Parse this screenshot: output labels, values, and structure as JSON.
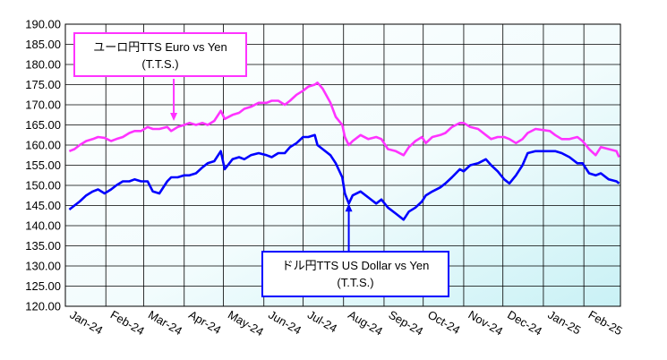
{
  "chart_data": {
    "type": "line",
    "x_ticks": [
      "Jan-24",
      "Feb-24",
      "Mar-24",
      "Apr-24",
      "May-24",
      "Jun-24",
      "Jul-24",
      "Aug-24",
      "Sep-24",
      "Oct-24",
      "Nov-24",
      "Dec-24",
      "Jan-25",
      "Feb-25"
    ],
    "ylim": [
      120,
      190
    ],
    "y_ticks": [
      "120.00",
      "125.00",
      "130.00",
      "135.00",
      "140.00",
      "145.00",
      "150.00",
      "155.00",
      "160.00",
      "165.00",
      "170.00",
      "175.00",
      "180.00",
      "185.00",
      "190.00"
    ],
    "grid": true,
    "series": [
      {
        "name": "ユーロ円TTS Euro vs Yen (T.T.S.)",
        "color": "#ff33ff",
        "points": [
          [
            "2024-01-04",
            158.5
          ],
          [
            "2024-01-08",
            159.0
          ],
          [
            "2024-01-12",
            160.0
          ],
          [
            "2024-01-17",
            161.0
          ],
          [
            "2024-01-22",
            161.5
          ],
          [
            "2024-01-26",
            162.0
          ],
          [
            "2024-01-31",
            161.8
          ],
          [
            "2024-02-05",
            161.0
          ],
          [
            "2024-02-09",
            161.5
          ],
          [
            "2024-02-14",
            162.0
          ],
          [
            "2024-02-19",
            163.0
          ],
          [
            "2024-02-23",
            163.5
          ],
          [
            "2024-02-28",
            163.5
          ],
          [
            "2024-03-04",
            164.5
          ],
          [
            "2024-03-08",
            164.0
          ],
          [
            "2024-03-13",
            164.0
          ],
          [
            "2024-03-19",
            164.5
          ],
          [
            "2024-03-22",
            163.5
          ],
          [
            "2024-03-27",
            164.5
          ],
          [
            "2024-04-01",
            165.0
          ],
          [
            "2024-04-05",
            165.5
          ],
          [
            "2024-04-10",
            165.0
          ],
          [
            "2024-04-15",
            165.5
          ],
          [
            "2024-04-19",
            165.0
          ],
          [
            "2024-04-24",
            166.0
          ],
          [
            "2024-04-29",
            168.5
          ],
          [
            "2024-05-02",
            166.5
          ],
          [
            "2024-05-08",
            167.5
          ],
          [
            "2024-05-13",
            168.0
          ],
          [
            "2024-05-17",
            169.0
          ],
          [
            "2024-05-22",
            169.5
          ],
          [
            "2024-05-28",
            170.5
          ],
          [
            "2024-06-03",
            170.5
          ],
          [
            "2024-06-07",
            171.0
          ],
          [
            "2024-06-12",
            171.0
          ],
          [
            "2024-06-17",
            170.0
          ],
          [
            "2024-06-21",
            171.0
          ],
          [
            "2024-06-26",
            172.5
          ],
          [
            "2024-07-01",
            173.5
          ],
          [
            "2024-07-05",
            174.5
          ],
          [
            "2024-07-10",
            175.0
          ],
          [
            "2024-07-12",
            175.5
          ],
          [
            "2024-07-16",
            174.0
          ],
          [
            "2024-07-22",
            170.5
          ],
          [
            "2024-07-26",
            167.0
          ],
          [
            "2024-07-31",
            165.0
          ],
          [
            "2024-08-02",
            162.0
          ],
          [
            "2024-08-05",
            160.0
          ],
          [
            "2024-08-08",
            161.0
          ],
          [
            "2024-08-14",
            162.5
          ],
          [
            "2024-08-20",
            161.5
          ],
          [
            "2024-08-26",
            162.0
          ],
          [
            "2024-08-30",
            161.5
          ],
          [
            "2024-09-04",
            159.0
          ],
          [
            "2024-09-10",
            158.5
          ],
          [
            "2024-09-16",
            157.5
          ],
          [
            "2024-09-20",
            159.5
          ],
          [
            "2024-09-25",
            161.0
          ],
          [
            "2024-09-30",
            162.0
          ],
          [
            "2024-10-03",
            160.5
          ],
          [
            "2024-10-08",
            162.0
          ],
          [
            "2024-10-14",
            162.5
          ],
          [
            "2024-10-18",
            163.0
          ],
          [
            "2024-10-23",
            164.5
          ],
          [
            "2024-10-29",
            165.5
          ],
          [
            "2024-11-01",
            165.5
          ],
          [
            "2024-11-06",
            164.5
          ],
          [
            "2024-11-12",
            164.0
          ],
          [
            "2024-11-18",
            162.5
          ],
          [
            "2024-11-22",
            161.5
          ],
          [
            "2024-11-27",
            162.0
          ],
          [
            "2024-12-02",
            162.0
          ],
          [
            "2024-12-06",
            161.5
          ],
          [
            "2024-12-11",
            160.5
          ],
          [
            "2024-12-16",
            161.5
          ],
          [
            "2024-12-20",
            163.0
          ],
          [
            "2024-12-26",
            164.0
          ],
          [
            "2025-01-06",
            163.5
          ],
          [
            "2025-01-10",
            162.5
          ],
          [
            "2025-01-15",
            161.5
          ],
          [
            "2025-01-21",
            161.5
          ],
          [
            "2025-01-27",
            162.0
          ],
          [
            "2025-01-31",
            161.0
          ],
          [
            "2025-02-05",
            159.0
          ],
          [
            "2025-02-10",
            157.5
          ],
          [
            "2025-02-14",
            159.5
          ],
          [
            "2025-02-20",
            159.0
          ],
          [
            "2025-02-26",
            158.5
          ],
          [
            "2025-02-28",
            157.0
          ]
        ]
      },
      {
        "name": "ドル円TTS US Dollar vs Yen (T.T.S.)",
        "color": "#0000ff",
        "points": [
          [
            "2024-01-04",
            144.0
          ],
          [
            "2024-01-08",
            145.0
          ],
          [
            "2024-01-12",
            146.0
          ],
          [
            "2024-01-17",
            147.5
          ],
          [
            "2024-01-22",
            148.5
          ],
          [
            "2024-01-26",
            149.0
          ],
          [
            "2024-01-31",
            148.0
          ],
          [
            "2024-02-05",
            149.0
          ],
          [
            "2024-02-09",
            150.0
          ],
          [
            "2024-02-14",
            151.0
          ],
          [
            "2024-02-19",
            151.0
          ],
          [
            "2024-02-23",
            151.5
          ],
          [
            "2024-02-28",
            151.0
          ],
          [
            "2024-03-04",
            151.0
          ],
          [
            "2024-03-08",
            148.5
          ],
          [
            "2024-03-13",
            148.0
          ],
          [
            "2024-03-19",
            151.0
          ],
          [
            "2024-03-22",
            152.0
          ],
          [
            "2024-03-27",
            152.0
          ],
          [
            "2024-04-01",
            152.5
          ],
          [
            "2024-04-05",
            152.5
          ],
          [
            "2024-04-10",
            153.0
          ],
          [
            "2024-04-15",
            154.5
          ],
          [
            "2024-04-19",
            155.5
          ],
          [
            "2024-04-24",
            156.0
          ],
          [
            "2024-04-29",
            158.5
          ],
          [
            "2024-05-02",
            154.0
          ],
          [
            "2024-05-08",
            156.5
          ],
          [
            "2024-05-13",
            157.0
          ],
          [
            "2024-05-17",
            156.5
          ],
          [
            "2024-05-22",
            157.5
          ],
          [
            "2024-05-28",
            158.0
          ],
          [
            "2024-06-03",
            157.5
          ],
          [
            "2024-06-07",
            157.0
          ],
          [
            "2024-06-12",
            158.0
          ],
          [
            "2024-06-17",
            158.0
          ],
          [
            "2024-06-21",
            159.5
          ],
          [
            "2024-06-26",
            160.5
          ],
          [
            "2024-07-01",
            162.0
          ],
          [
            "2024-07-05",
            162.0
          ],
          [
            "2024-07-10",
            162.5
          ],
          [
            "2024-07-12",
            160.0
          ],
          [
            "2024-07-16",
            159.0
          ],
          [
            "2024-07-22",
            157.5
          ],
          [
            "2024-07-26",
            155.5
          ],
          [
            "2024-07-31",
            152.0
          ],
          [
            "2024-08-02",
            148.0
          ],
          [
            "2024-08-05",
            145.5
          ],
          [
            "2024-08-08",
            147.5
          ],
          [
            "2024-08-14",
            148.5
          ],
          [
            "2024-08-20",
            147.0
          ],
          [
            "2024-08-26",
            145.5
          ],
          [
            "2024-08-30",
            146.5
          ],
          [
            "2024-09-04",
            144.5
          ],
          [
            "2024-09-10",
            143.0
          ],
          [
            "2024-09-16",
            141.5
          ],
          [
            "2024-09-20",
            143.5
          ],
          [
            "2024-09-25",
            144.5
          ],
          [
            "2024-09-30",
            146.0
          ],
          [
            "2024-10-03",
            147.5
          ],
          [
            "2024-10-08",
            148.5
          ],
          [
            "2024-10-14",
            149.5
          ],
          [
            "2024-10-18",
            150.5
          ],
          [
            "2024-10-23",
            152.0
          ],
          [
            "2024-10-29",
            154.0
          ],
          [
            "2024-11-01",
            153.5
          ],
          [
            "2024-11-06",
            155.0
          ],
          [
            "2024-11-12",
            155.5
          ],
          [
            "2024-11-18",
            156.5
          ],
          [
            "2024-11-22",
            155.0
          ],
          [
            "2024-11-27",
            153.5
          ],
          [
            "2024-12-02",
            151.5
          ],
          [
            "2024-12-06",
            150.5
          ],
          [
            "2024-12-11",
            152.5
          ],
          [
            "2024-12-16",
            155.0
          ],
          [
            "2024-12-20",
            158.0
          ],
          [
            "2024-12-26",
            158.5
          ],
          [
            "2025-01-06",
            158.5
          ],
          [
            "2025-01-10",
            158.5
          ],
          [
            "2025-01-15",
            158.0
          ],
          [
            "2025-01-21",
            157.0
          ],
          [
            "2025-01-27",
            155.5
          ],
          [
            "2025-01-31",
            155.5
          ],
          [
            "2025-02-05",
            153.0
          ],
          [
            "2025-02-10",
            152.5
          ],
          [
            "2025-02-14",
            153.0
          ],
          [
            "2025-02-20",
            151.5
          ],
          [
            "2025-02-26",
            151.0
          ],
          [
            "2025-02-28",
            150.5
          ]
        ]
      }
    ]
  },
  "callouts": {
    "euro": {
      "line1": "ユーロ円TTS  Euro vs Yen",
      "line2": "(T.T.S.)",
      "color": "#ff33ff",
      "target_date": "2024-03-24",
      "target_value": 166.0
    },
    "usd": {
      "line1": "ドル円TTS   US Dollar vs Yen",
      "line2": "(T.T.S.)",
      "color": "#0000ff",
      "target_date": "2024-08-05",
      "target_value": 145.5
    }
  }
}
